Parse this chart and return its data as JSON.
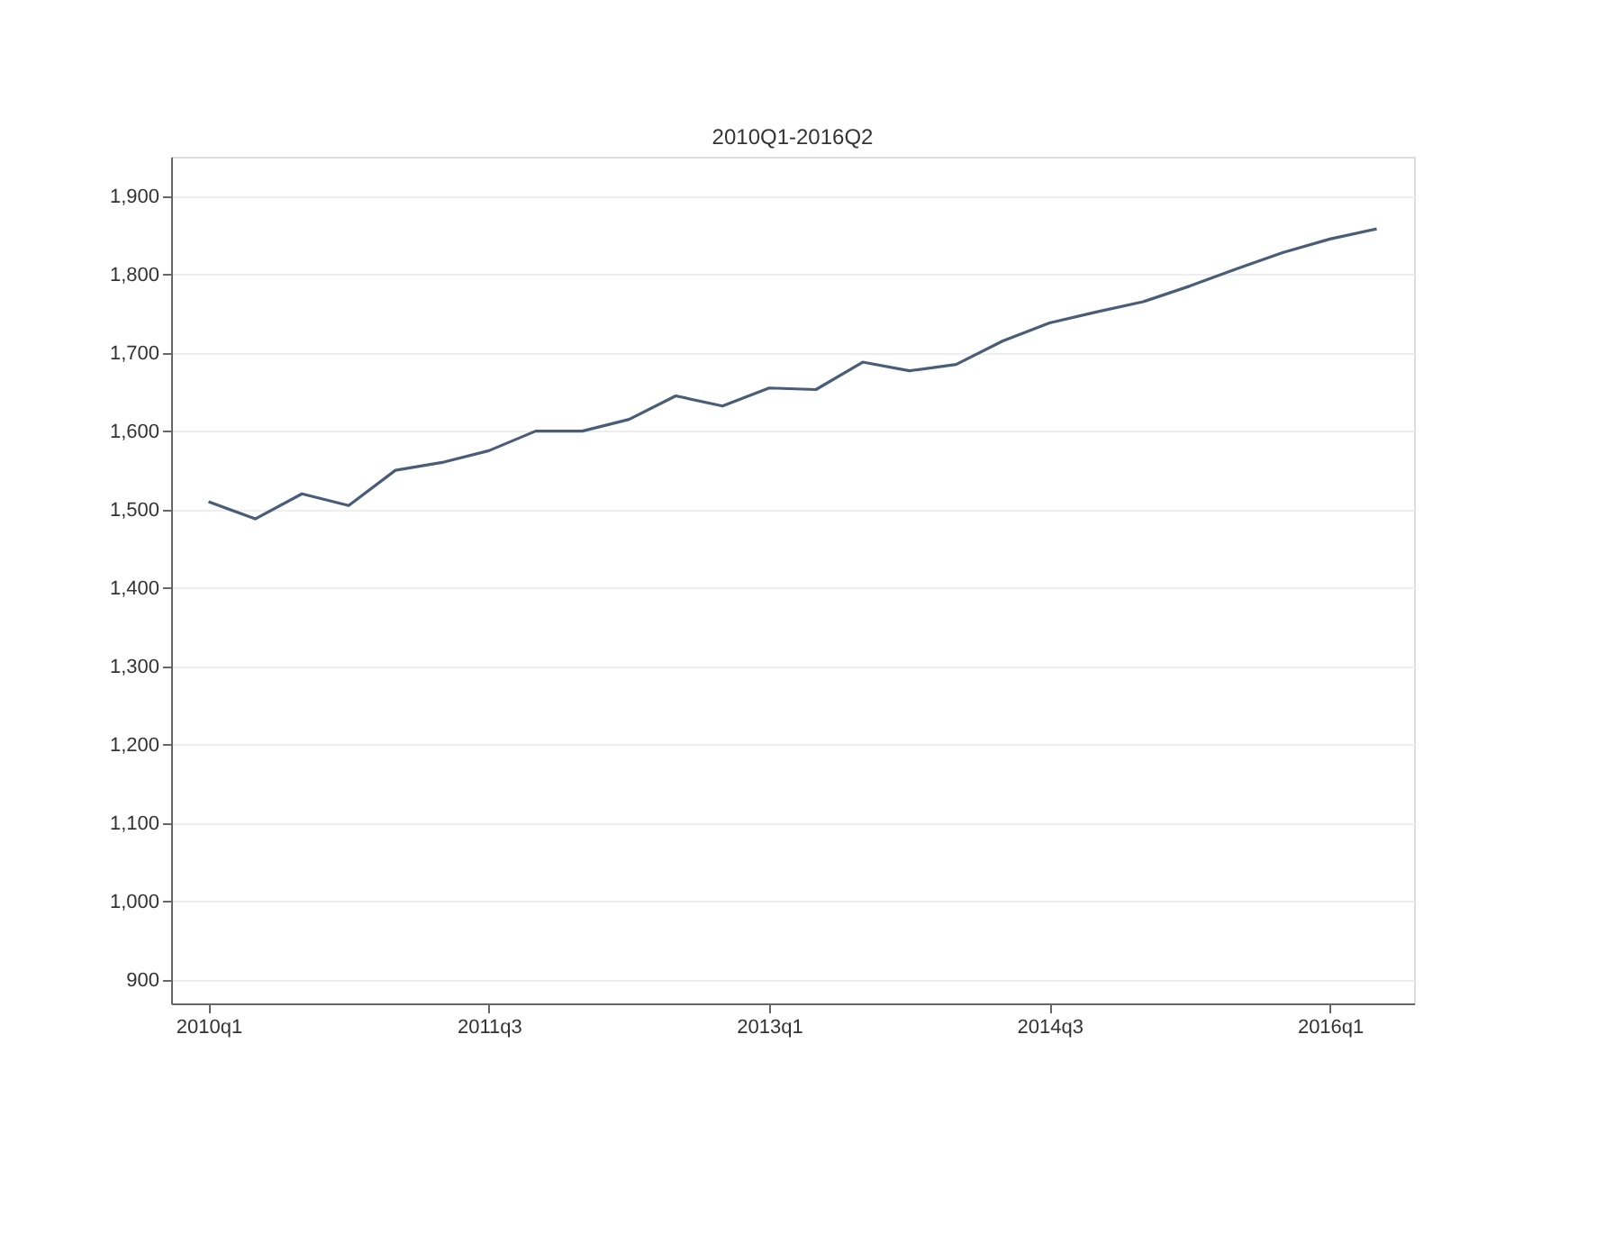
{
  "chart_data": {
    "type": "line",
    "title": "2010Q1-2016Q2",
    "categories": [
      "2010q1",
      null,
      null,
      null,
      null,
      null,
      "2011q3",
      null,
      null,
      null,
      null,
      null,
      "2013q1",
      null,
      null,
      null,
      null,
      null,
      "2014q3",
      null,
      null,
      null,
      null,
      null,
      "2016q1",
      null
    ],
    "series": [
      {
        "color": "#4a5d78",
        "values": [
          1510,
          1488,
          1520,
          1505,
          1550,
          1560,
          1575,
          1600,
          1600,
          1615,
          1645,
          1632,
          1655,
          1653,
          1688,
          1677,
          1685,
          1715,
          1738,
          1752,
          1765,
          1785,
          1807,
          1828,
          1845,
          1858
        ]
      }
    ],
    "ylim": [
      870,
      1950
    ],
    "yticks": [
      {
        "value": 900,
        "label": "900"
      },
      {
        "value": 1000,
        "label": "1,000"
      },
      {
        "value": 1100,
        "label": "1,100"
      },
      {
        "value": 1200,
        "label": "1,200"
      },
      {
        "value": 1300,
        "label": "1,300"
      },
      {
        "value": 1400,
        "label": "1,400"
      },
      {
        "value": 1500,
        "label": "1,500"
      },
      {
        "value": 1600,
        "label": "1,600"
      },
      {
        "value": 1700,
        "label": "1,700"
      },
      {
        "value": 1800,
        "label": "1,800"
      },
      {
        "value": 1900,
        "label": "1,900"
      }
    ],
    "grid": "y",
    "marker": "none",
    "line_style": "solid"
  }
}
